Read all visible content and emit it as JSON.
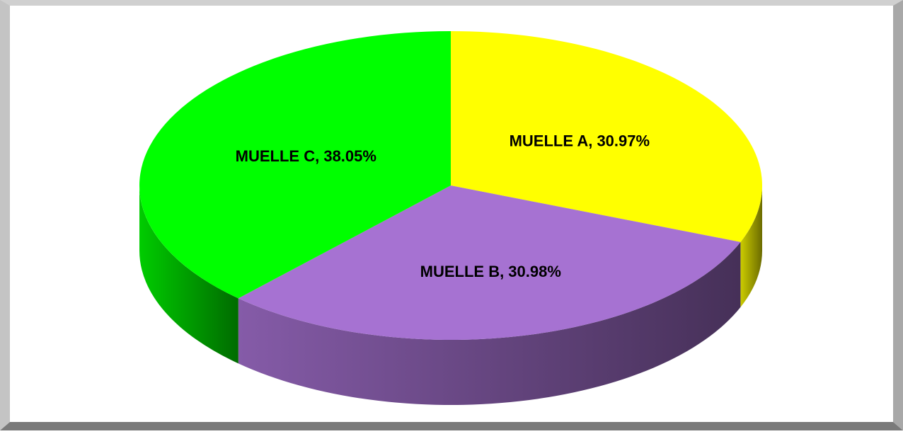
{
  "chart_data": {
    "type": "pie3d",
    "values": [
      30.97,
      30.98,
      38.05
    ],
    "value_labels": [
      "MUELLE A, 30.97%",
      "MUELLE B, 30.98%",
      "MUELLE C, 38.05%"
    ],
    "colors": [
      "#ffff00",
      "#a672d2",
      "#00ff00"
    ]
  }
}
